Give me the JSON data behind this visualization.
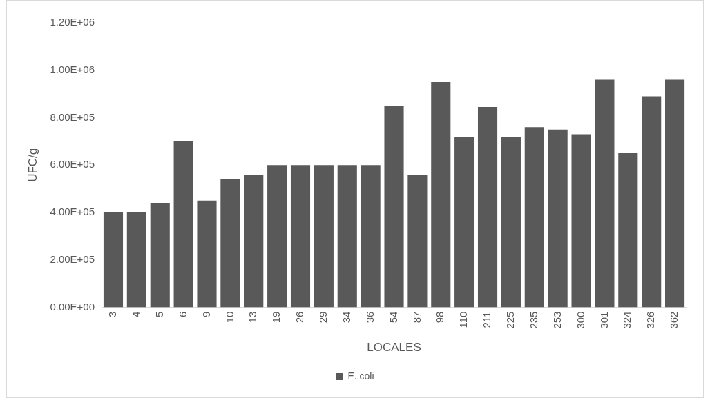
{
  "chart_data": {
    "type": "bar",
    "xlabel": "LOCALES",
    "ylabel": "UFC/g",
    "categories": [
      "3",
      "4",
      "5",
      "6",
      "9",
      "10",
      "13",
      "19",
      "26",
      "29",
      "34",
      "36",
      "54",
      "87",
      "98",
      "110",
      "211",
      "225",
      "235",
      "253",
      "300",
      "301",
      "324",
      "326",
      "362"
    ],
    "series": [
      {
        "name": "E. coli",
        "color": "#595959",
        "values": [
          400000,
          400000,
          440000,
          700000,
          450000,
          540000,
          560000,
          600000,
          600000,
          600000,
          600000,
          600000,
          850000,
          560000,
          950000,
          720000,
          845000,
          720000,
          760000,
          750000,
          730000,
          960000,
          650000,
          890000,
          960000
        ]
      }
    ],
    "ylim": [
      0,
      1200000
    ],
    "yticks": [
      {
        "value": 0,
        "label": "0.00E+00"
      },
      {
        "value": 200000,
        "label": "2.00E+05"
      },
      {
        "value": 400000,
        "label": "4.00E+05"
      },
      {
        "value": 600000,
        "label": "6.00E+05"
      },
      {
        "value": 800000,
        "label": "8.00E+05"
      },
      {
        "value": 1000000,
        "label": "1.00E+06"
      },
      {
        "value": 1200000,
        "label": "1.20E+06"
      }
    ],
    "grid": false,
    "legend": "bottom"
  }
}
